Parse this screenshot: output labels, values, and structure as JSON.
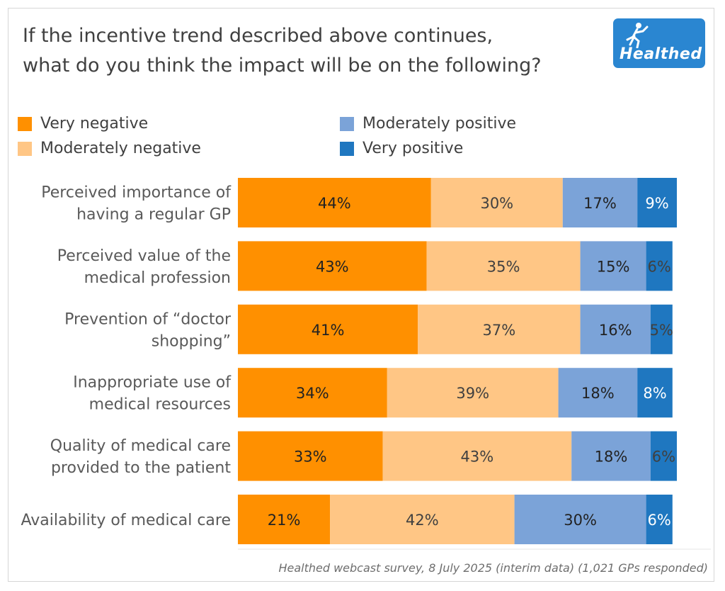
{
  "title_line1": "If the incentive trend described above continues,",
  "title_line2": "what do you think the impact will be on the following?",
  "logo": {
    "text": "Healthed",
    "icon": "running-figure-icon",
    "color": "#2a86d1"
  },
  "source": "Healthed webcast survey, 8 July 2025 (interim data) (1,021 GPs responded)",
  "chart_data": {
    "type": "bar",
    "orientation": "horizontal",
    "stacked": true,
    "value_format": "percent",
    "categories": [
      [
        "Perceived importance of",
        "having a regular GP"
      ],
      [
        "Perceived value of the",
        "medical profession"
      ],
      [
        "Prevention of “doctor",
        "shopping”"
      ],
      [
        "Inappropriate use of",
        "medical resources"
      ],
      [
        "Quality of medical care",
        "provided to the patient"
      ],
      [
        "Availability of medical care"
      ]
    ],
    "series": [
      {
        "name": "Very negative",
        "color": "#ff9000",
        "values": [
          44,
          43,
          41,
          34,
          33,
          21
        ]
      },
      {
        "name": "Moderately negative",
        "color": "#ffc685",
        "values": [
          30,
          35,
          37,
          39,
          43,
          42
        ]
      },
      {
        "name": "Moderately positive",
        "color": "#7ba3d8",
        "values": [
          17,
          15,
          16,
          18,
          18,
          30
        ]
      },
      {
        "name": "Very positive",
        "color": "#1f77c0",
        "values": [
          9,
          6,
          5,
          8,
          6,
          6
        ]
      }
    ],
    "legend_position": "top",
    "grid": false
  }
}
